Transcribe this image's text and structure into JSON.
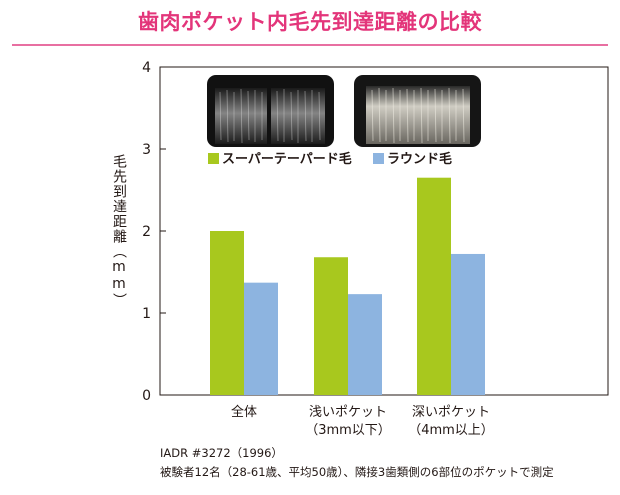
{
  "title": "歯肉ポケット内毛先到達距離の比較",
  "colors": {
    "title": "#e3357a",
    "series_green": "#a8c81e",
    "series_blue": "#8db4e0",
    "axis": "#231815"
  },
  "notes": {
    "line1": "IADR #3272（1996）",
    "line2": "被験者12名（28-61歳、平均50歳）、隣接3歯類側の6部位のポケットで測定"
  },
  "chart_data": {
    "type": "bar",
    "title": "歯肉ポケット内毛先到達距離の比較",
    "ylabel": "毛先到達距離（mm）",
    "xlabel": "",
    "ylim": [
      0,
      4
    ],
    "yticks": [
      "0",
      "1",
      "2",
      "3",
      "4"
    ],
    "categories": [
      {
        "line1": "全体",
        "line2": ""
      },
      {
        "line1": "浅いポケット",
        "line2": "（3mm以下）"
      },
      {
        "line1": "深いポケット",
        "line2": "（4mm以上）"
      }
    ],
    "series": [
      {
        "name": "スーパーテーパード毛",
        "color": "#a8c81e",
        "values": [
          2.0,
          1.68,
          2.65
        ]
      },
      {
        "name": "ラウンド毛",
        "color": "#8db4e0",
        "values": [
          1.37,
          1.23,
          1.72
        ]
      }
    ],
    "grid": false,
    "legend": "top-left"
  }
}
